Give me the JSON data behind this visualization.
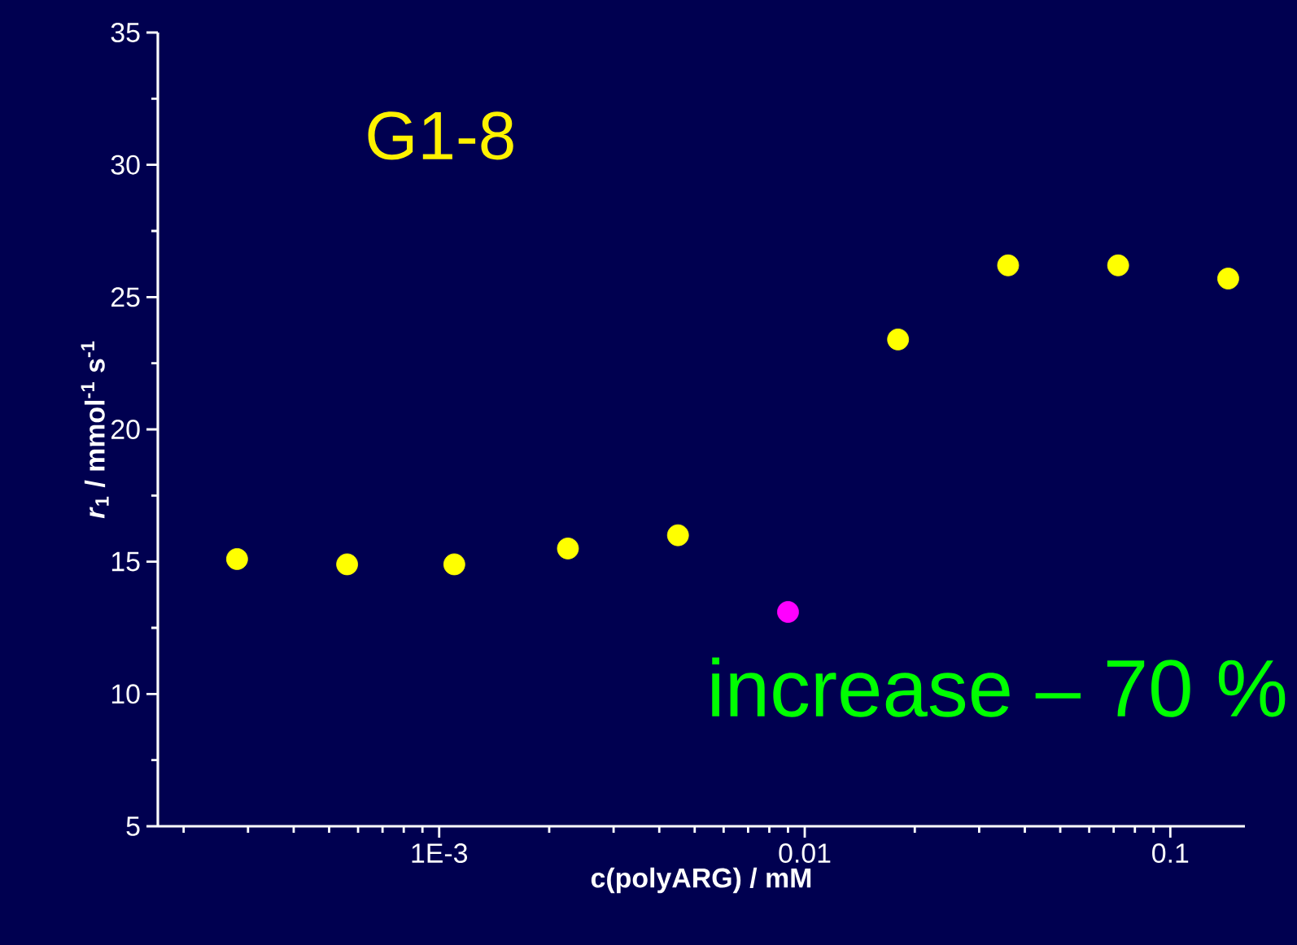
{
  "chart_data": {
    "type": "scatter",
    "title": "G1-8",
    "xlabel": "c(polyARG) / mM",
    "ylabel": "*r*$_{1}$ / mmol$^{-1}$ s$^{-1}$",
    "annotations": [
      "increase – 70 %"
    ],
    "log": "x",
    "marker": "circle",
    "grid": false,
    "xlim": [
      0.00017,
      0.16
    ],
    "ylim": [
      5,
      35
    ],
    "xticks": [
      {
        "value": 0.001,
        "label": "1E-3"
      },
      0.01,
      0.1
    ],
    "yticks": [
      5,
      10,
      15,
      20,
      25,
      30,
      35
    ],
    "series": [
      {
        "color": "#ffff00",
        "x": [
          0.00028,
          0.00056,
          0.0011,
          0.00225,
          0.0045,
          0.018,
          0.036,
          0.072,
          0.144
        ],
        "values": [
          15.1,
          14.9,
          14.9,
          15.5,
          16.0,
          23.4,
          26.2,
          26.2,
          25.7
        ]
      },
      {
        "color": "#ff00ff",
        "x": [
          0.009
        ],
        "values": [
          13.1
        ]
      }
    ]
  }
}
